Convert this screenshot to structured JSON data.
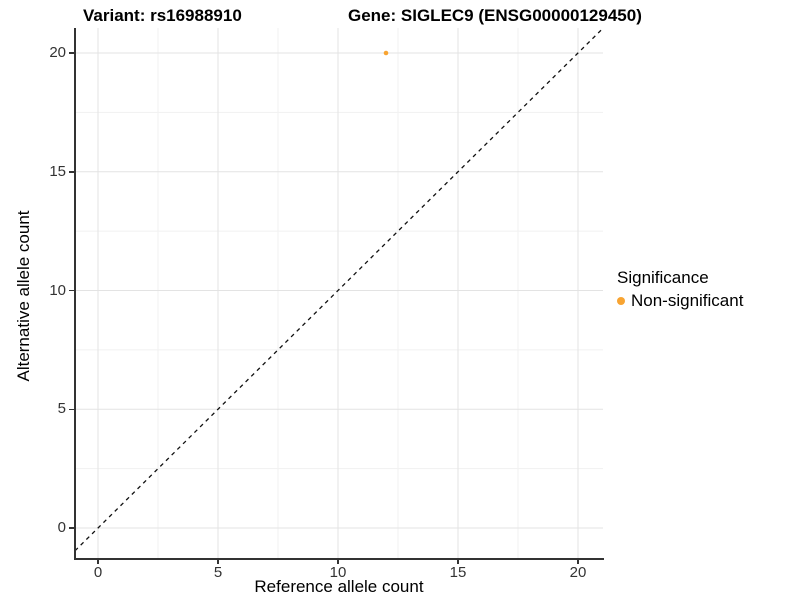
{
  "figure": {
    "title_left": "Variant: rs16988910",
    "title_right": "Gene: SIGLEC9 (ENSG00000129450)"
  },
  "axes": {
    "x_label": "Reference allele count",
    "y_label": "Alternative allele count",
    "x_tick_labels": [
      "0",
      "5",
      "10",
      "15",
      "20"
    ],
    "y_tick_labels": [
      "0",
      "5",
      "10",
      "15",
      "20"
    ]
  },
  "legend": {
    "title": "Significance",
    "entries": [
      {
        "label": "Non-significant",
        "color": "#F8A432",
        "shape": "circle"
      }
    ]
  },
  "chart_data": {
    "type": "scatter",
    "title": "Variant: rs16988910 | Gene: SIGLEC9 (ENSG00000129450)",
    "xlabel": "Reference allele count",
    "ylabel": "Alternative allele count",
    "xlim": [
      -1,
      21.1
    ],
    "ylim": [
      -1.3,
      21.1
    ],
    "x_ticks": [
      0,
      5,
      10,
      15,
      20
    ],
    "y_ticks": [
      0,
      5,
      10,
      15,
      20
    ],
    "minor_gridlines": [
      2.5,
      7.5,
      12.5,
      17.5
    ],
    "grid": "on",
    "legend_position": "right",
    "series": [
      {
        "name": "Non-significant",
        "color": "#F8A432",
        "points": [
          {
            "x": 12,
            "y": 20
          }
        ]
      }
    ],
    "reference_line": {
      "kind": "identity",
      "equation": "y = x",
      "style": "dashed",
      "color": "#111111"
    },
    "colors": {
      "grid_major": "#E3E3E3",
      "grid_minor": "#F1F1F1",
      "axis": "#333333",
      "background": "#FFFFFF",
      "point": "#F8A432"
    }
  }
}
